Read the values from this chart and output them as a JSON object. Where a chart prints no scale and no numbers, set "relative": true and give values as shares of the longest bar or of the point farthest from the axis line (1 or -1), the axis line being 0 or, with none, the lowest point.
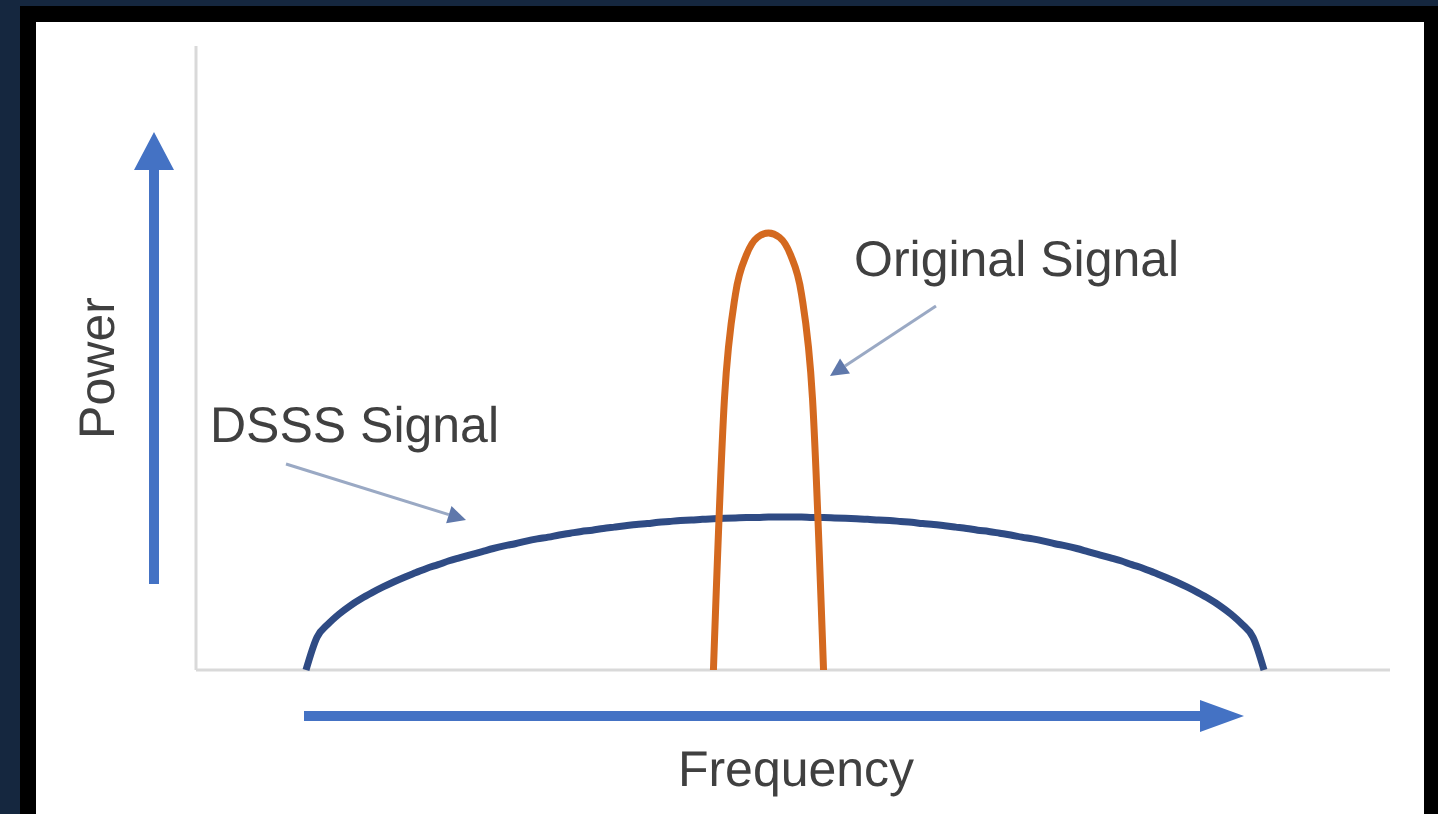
{
  "chart_data": {
    "type": "line",
    "relative": true,
    "xlabel": "Frequency",
    "ylabel": "Power",
    "categories": [
      null,
      null,
      null,
      null,
      null,
      null,
      null,
      null,
      null,
      null,
      null,
      null,
      null,
      null,
      null,
      null,
      null,
      null,
      null,
      null,
      null,
      null,
      null,
      null,
      null,
      null,
      null,
      null,
      null,
      null,
      null,
      null,
      null,
      null,
      null,
      null,
      null,
      null,
      null,
      null,
      null,
      null,
      null,
      null,
      null,
      null,
      null,
      null,
      null,
      null,
      null,
      null,
      null,
      null,
      null,
      null,
      null,
      null,
      null,
      null,
      null,
      null,
      null,
      null,
      null,
      null,
      null,
      null,
      null,
      null,
      null,
      null,
      null,
      null,
      null,
      null,
      null,
      null,
      null,
      null,
      null,
      null,
      null,
      null,
      null,
      null,
      null,
      null
    ],
    "series": [
      {
        "name": "DSSS Signal",
        "color": "#2f4b84",
        "values": [
          0,
          0.075,
          0.105,
          0.128,
          0.147,
          0.163,
          0.177,
          0.19,
          0.202,
          0.213,
          0.223,
          0.233,
          0.241,
          0.25,
          0.257,
          0.264,
          0.271,
          0.278,
          0.284,
          0.289,
          0.295,
          0.3,
          0.304,
          0.309,
          0.313,
          0.317,
          0.32,
          0.324,
          0.327,
          0.33,
          0.333,
          0.335,
          0.338,
          0.34,
          0.342,
          0.343,
          0.345,
          0.346,
          0.347,
          0.348,
          0.349,
          0.349,
          0.35,
          0.35,
          0.35,
          0.35,
          0.349,
          0.349,
          0.348,
          0.347,
          0.346,
          0.345,
          0.343,
          0.342,
          0.34,
          0.338,
          0.335,
          0.333,
          0.33,
          0.327,
          0.324,
          0.32,
          0.317,
          0.313,
          0.309,
          0.304,
          0.3,
          0.295,
          0.289,
          0.284,
          0.278,
          0.271,
          0.264,
          0.257,
          0.25,
          0.241,
          0.233,
          0.223,
          0.213,
          0.202,
          0.19,
          0.177,
          0.163,
          0.147,
          0.128,
          0.105,
          0.075,
          0
        ]
      },
      {
        "name": "Original Signal",
        "color": "#d4691f",
        "values": [
          null,
          null,
          null,
          null,
          null,
          null,
          null,
          null,
          null,
          null,
          null,
          null,
          null,
          null,
          null,
          null,
          null,
          null,
          null,
          null,
          null,
          null,
          null,
          null,
          null,
          null,
          null,
          null,
          null,
          null,
          null,
          null,
          null,
          null,
          null,
          null,
          null,
          0,
          0.62,
          0.86,
          0.95,
          0.99,
          1,
          0.99,
          0.95,
          0.86,
          0.62,
          0,
          null,
          null,
          null,
          null,
          null,
          null,
          null,
          null,
          null,
          null,
          null,
          null,
          null,
          null,
          null,
          null,
          null,
          null,
          null,
          null,
          null,
          null,
          null,
          null,
          null,
          null,
          null,
          null,
          null,
          null,
          null,
          null,
          null,
          null,
          null,
          null,
          null,
          null,
          null,
          null
        ]
      }
    ]
  }
}
